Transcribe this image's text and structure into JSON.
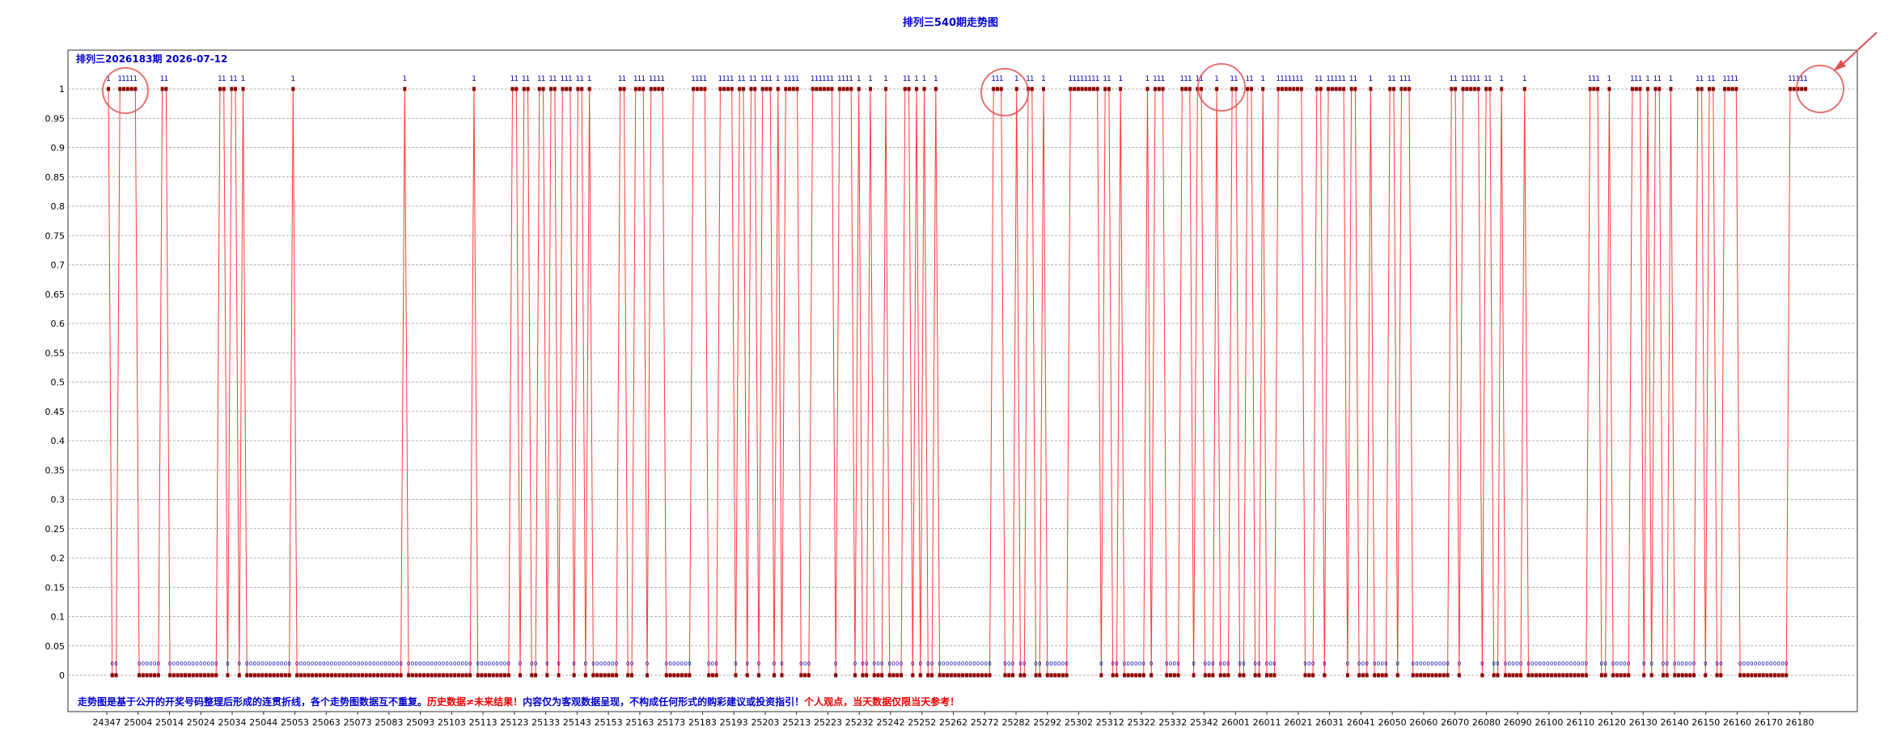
{
  "title": "排列三540期走势图",
  "subtitle": "排列三2026183期  2026-07-12",
  "notes": {
    "blue": "走势图是基于公开的开奖号码整理后形成的连贯折线，各个走势图数据互不重复。",
    "red1": "历史数据≠未来结果！",
    "blue2": "内容仅为客观数据呈现，不构成任何形式的购彩建议或投资指引！",
    "red2": "个人观点，当天数据仅限当天参考！"
  },
  "colors": {
    "line": "#ff3b3b",
    "marker": "#8b0000",
    "label": "#0000aa",
    "highlight": "#e05050",
    "grid": "#999999"
  },
  "chart_data": {
    "type": "line",
    "ylim": [
      0,
      1
    ],
    "yticks": [
      "0",
      "0.05",
      "0.1",
      "0.15",
      "0.2",
      "0.25",
      "0.3",
      "0.35",
      "0.4",
      "0.45",
      "0.5",
      "0.55",
      "0.6",
      "0.65",
      "0.7",
      "0.75",
      "0.8",
      "0.85",
      "0.9",
      "0.95",
      "1"
    ],
    "x_tick_labels": [
      "24347",
      "25004",
      "25014",
      "25024",
      "25034",
      "25044",
      "25053",
      "25063",
      "25073",
      "25083",
      "25093",
      "25103",
      "25113",
      "25123",
      "25133",
      "25143",
      "25153",
      "25163",
      "25173",
      "25183",
      "25193",
      "25203",
      "25213",
      "25223",
      "25232",
      "25242",
      "25252",
      "25262",
      "25272",
      "25282",
      "25292",
      "25302",
      "25312",
      "25322",
      "25332",
      "25342",
      "26001",
      "26011",
      "26021",
      "26031",
      "26041",
      "26050",
      "26060",
      "26070",
      "26080",
      "26090",
      "26100",
      "26110",
      "26120",
      "26130",
      "26140",
      "26150",
      "26160",
      "26170",
      "26180"
    ],
    "grid": true,
    "point_labels_shown": true,
    "values": [
      1,
      0,
      0,
      1,
      1,
      1,
      1,
      1,
      0,
      0,
      0,
      0,
      0,
      0,
      1,
      1,
      0,
      0,
      0,
      0,
      0,
      0,
      0,
      0,
      0,
      0,
      0,
      0,
      0,
      1,
      1,
      0,
      1,
      1,
      0,
      1,
      0,
      0,
      0,
      0,
      0,
      0,
      0,
      0,
      0,
      0,
      0,
      0,
      1,
      0,
      0,
      0,
      0,
      0,
      0,
      0,
      0,
      0,
      0,
      0,
      0,
      0,
      0,
      0,
      0,
      0,
      0,
      0,
      0,
      0,
      0,
      0,
      0,
      0,
      0,
      0,
      0,
      1,
      0,
      0,
      0,
      0,
      0,
      0,
      0,
      0,
      0,
      0,
      0,
      0,
      0,
      0,
      0,
      0,
      0,
      1,
      0,
      0,
      0,
      0,
      0,
      0,
      0,
      0,
      0,
      1,
      1,
      0,
      1,
      1,
      0,
      0,
      1,
      1,
      0,
      1,
      1,
      0,
      1,
      1,
      1,
      0,
      1,
      1,
      0,
      1,
      0,
      0,
      0,
      0,
      0,
      0,
      0,
      1,
      1,
      0,
      0,
      1,
      1,
      1,
      0,
      1,
      1,
      1,
      1,
      0,
      0,
      0,
      0,
      0,
      0,
      0,
      1,
      1,
      1,
      1,
      0,
      0,
      0,
      1,
      1,
      1,
      1,
      0,
      1,
      1,
      0,
      1,
      1,
      0,
      1,
      1,
      1,
      0,
      1,
      0,
      1,
      1,
      1,
      1,
      0,
      0,
      0,
      1,
      1,
      1,
      1,
      1,
      1,
      0,
      1,
      1,
      1,
      1,
      0,
      1,
      0,
      0,
      1,
      0,
      0,
      0,
      1,
      0,
      0,
      0,
      0,
      1,
      1,
      0,
      1,
      0,
      1,
      0,
      0,
      1,
      0,
      0,
      0,
      0,
      0,
      0,
      0,
      0,
      0,
      0,
      0,
      0,
      0,
      0,
      1,
      1,
      1,
      0,
      0,
      0,
      1,
      0,
      0,
      1,
      1,
      0,
      0,
      1,
      0,
      0,
      0,
      0,
      0,
      0,
      1,
      1,
      1,
      1,
      1,
      1,
      1,
      1,
      0,
      1,
      1,
      0,
      0,
      1,
      0,
      0,
      0,
      0,
      0,
      0,
      1,
      0,
      1,
      1,
      1,
      0,
      0,
      0,
      0,
      1,
      1,
      1,
      0,
      1,
      1,
      0,
      0,
      0,
      1,
      0,
      0,
      0,
      1,
      1,
      0,
      0,
      1,
      1,
      0,
      0,
      1,
      0,
      0,
      0,
      1,
      1,
      1,
      1,
      1,
      1,
      1,
      0,
      0,
      0,
      1,
      1,
      0,
      1,
      1,
      1,
      1,
      1,
      0,
      1,
      1,
      0,
      0,
      0,
      1,
      0,
      0,
      0,
      0,
      1,
      1,
      0,
      1,
      1,
      1,
      0,
      0,
      0,
      0,
      0,
      0,
      0,
      0,
      0,
      0,
      1,
      1,
      0,
      1,
      1,
      1,
      1,
      1,
      0,
      1,
      1,
      0,
      0,
      1,
      0,
      0,
      0,
      0,
      0,
      1,
      0,
      0,
      0,
      0,
      0,
      0,
      0,
      0,
      0,
      0,
      0,
      0,
      0,
      0,
      0,
      0,
      1,
      1,
      1,
      0,
      0,
      1,
      0,
      0,
      0,
      0,
      0,
      1,
      1,
      1,
      0,
      1,
      0,
      1,
      1,
      0,
      0,
      1,
      0,
      0,
      0,
      0,
      0,
      0,
      1,
      1,
      0,
      1,
      1,
      0,
      0,
      1,
      1,
      1,
      1,
      0,
      0,
      0,
      0,
      0,
      0,
      0,
      0,
      0,
      0,
      0,
      0,
      0,
      1,
      1,
      1,
      1,
      1
    ]
  }
}
